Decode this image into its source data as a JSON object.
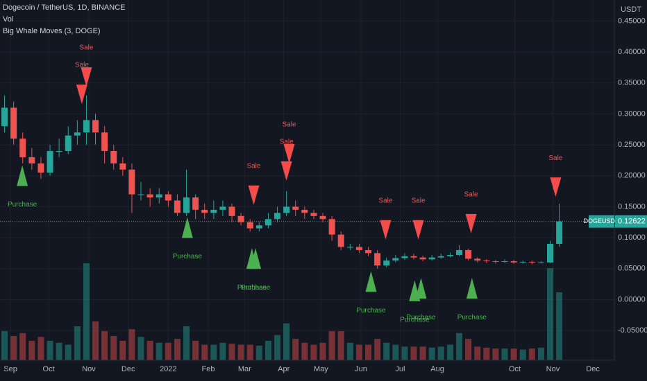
{
  "header": {
    "title": "Dogecoin / TetherUS, 1D, BINANCE",
    "volume_label": "Vol",
    "indicator": "Big Whale Moves (3, DOGE)"
  },
  "chart_data": {
    "type": "candlestick",
    "currency": "USDT",
    "symbol": "DOGEUSDT",
    "last_price": 0.12622,
    "up_color": "#26a69a",
    "down_color": "#ef5350",
    "grid": true,
    "xlim": [
      -0.5,
      67.06
    ],
    "ylim": [
      -0.098,
      0.484
    ],
    "xticks": [
      {
        "value": 0.65,
        "label": "Sep"
      },
      {
        "value": 4.85,
        "label": "Oct"
      },
      {
        "value": 9.27,
        "label": "Nov"
      },
      {
        "value": 13.6,
        "label": "Dec"
      },
      {
        "value": 18.0,
        "label": "2022"
      },
      {
        "value": 22.4,
        "label": "Feb"
      },
      {
        "value": 26.4,
        "label": "Mar"
      },
      {
        "value": 30.7,
        "label": "Apr"
      },
      {
        "value": 34.8,
        "label": "May"
      },
      {
        "value": 39.2,
        "label": "Jun"
      },
      {
        "value": 43.5,
        "label": "Jul"
      },
      {
        "value": 47.6,
        "label": "Aug"
      },
      {
        "value": 56.1,
        "label": "Oct"
      },
      {
        "value": 60.3,
        "label": "Nov"
      },
      {
        "value": 64.7,
        "label": "Dec"
      }
    ],
    "yticks": [
      {
        "value": 0.45,
        "label": "0.45000"
      },
      {
        "value": 0.4,
        "label": "0.40000"
      },
      {
        "value": 0.35,
        "label": "0.35000"
      },
      {
        "value": 0.3,
        "label": "0.30000"
      },
      {
        "value": 0.25,
        "label": "0.25000"
      },
      {
        "value": 0.2,
        "label": "0.20000"
      },
      {
        "value": 0.15,
        "label": "0.15000"
      },
      {
        "value": 0.1,
        "label": "0.10000"
      },
      {
        "value": 0.05,
        "label": "0.05000"
      },
      {
        "value": 0,
        "label": "0.00000"
      },
      {
        "value": -0.05,
        "label": "-0.05000"
      }
    ],
    "open": [
      0.28,
      0.31,
      0.26,
      0.23,
      0.22,
      0.205,
      0.24,
      0.24,
      0.265,
      0.27,
      0.29,
      0.27,
      0.24,
      0.22,
      0.21,
      0.17,
      0.17,
      0.165,
      0.17,
      0.16,
      0.14,
      0.165,
      0.145,
      0.14,
      0.145,
      0.15,
      0.135,
      0.125,
      0.115,
      0.12,
      0.13,
      0.14,
      0.15,
      0.145,
      0.14,
      0.135,
      0.13,
      0.105,
      0.085,
      0.085,
      0.08,
      0.075,
      0.055,
      0.063,
      0.067,
      0.07,
      0.068,
      0.065,
      0.068,
      0.07,
      0.072,
      0.08,
      0.066,
      0.063,
      0.062,
      0.061,
      0.062,
      0.06,
      0.061,
      0.06,
      0.06,
      0.09
    ],
    "high": [
      0.33,
      0.32,
      0.27,
      0.245,
      0.23,
      0.25,
      0.26,
      0.28,
      0.29,
      0.33,
      0.3,
      0.28,
      0.25,
      0.23,
      0.22,
      0.19,
      0.18,
      0.18,
      0.175,
      0.17,
      0.21,
      0.17,
      0.155,
      0.16,
      0.16,
      0.155,
      0.14,
      0.13,
      0.125,
      0.14,
      0.15,
      0.175,
      0.16,
      0.15,
      0.145,
      0.14,
      0.135,
      0.11,
      0.09,
      0.09,
      0.085,
      0.08,
      0.068,
      0.072,
      0.075,
      0.074,
      0.071,
      0.072,
      0.074,
      0.076,
      0.088,
      0.082,
      0.068,
      0.065,
      0.064,
      0.065,
      0.064,
      0.063,
      0.063,
      0.062,
      0.095,
      0.155
    ],
    "low": [
      0.27,
      0.25,
      0.22,
      0.21,
      0.195,
      0.2,
      0.23,
      0.235,
      0.25,
      0.25,
      0.25,
      0.22,
      0.21,
      0.2,
      0.14,
      0.16,
      0.15,
      0.155,
      0.15,
      0.135,
      0.135,
      0.13,
      0.13,
      0.13,
      0.135,
      0.125,
      0.12,
      0.11,
      0.11,
      0.115,
      0.125,
      0.135,
      0.135,
      0.13,
      0.13,
      0.125,
      0.095,
      0.08,
      0.08,
      0.075,
      0.07,
      0.05,
      0.052,
      0.06,
      0.064,
      0.065,
      0.062,
      0.063,
      0.066,
      0.068,
      0.07,
      0.063,
      0.06,
      0.059,
      0.058,
      0.059,
      0.058,
      0.058,
      0.057,
      0.058,
      0.059,
      0.085
    ],
    "close": [
      0.31,
      0.26,
      0.23,
      0.22,
      0.205,
      0.24,
      0.24,
      0.265,
      0.27,
      0.29,
      0.27,
      0.24,
      0.22,
      0.21,
      0.17,
      0.17,
      0.165,
      0.17,
      0.16,
      0.14,
      0.165,
      0.145,
      0.14,
      0.145,
      0.15,
      0.135,
      0.125,
      0.115,
      0.12,
      0.13,
      0.14,
      0.15,
      0.145,
      0.14,
      0.135,
      0.13,
      0.105,
      0.085,
      0.085,
      0.08,
      0.075,
      0.055,
      0.063,
      0.067,
      0.07,
      0.068,
      0.065,
      0.068,
      0.07,
      0.072,
      0.08,
      0.066,
      0.063,
      0.062,
      0.061,
      0.062,
      0.06,
      0.061,
      0.06,
      0.06,
      0.09,
      0.12622
    ],
    "volume": [
      3,
      2.5,
      2.8,
      2,
      2.4,
      2,
      1.8,
      1.6,
      3.5,
      10,
      4,
      3,
      2.5,
      2,
      3.2,
      2.4,
      2,
      1.8,
      1.8,
      2.2,
      3.5,
      2,
      1.6,
      1.6,
      1.8,
      1.7,
      1.6,
      1.6,
      1.5,
      2,
      2.6,
      3.8,
      2.2,
      1.8,
      1.6,
      1.8,
      3,
      3,
      1.8,
      1.6,
      1.6,
      2.2,
      1.8,
      1.6,
      1.4,
      1.4,
      1.4,
      1.3,
      1.4,
      1.6,
      2.8,
      2.2,
      1.4,
      1.3,
      1.2,
      1.2,
      1.2,
      1.1,
      1.2,
      1.3,
      9.5,
      7
    ],
    "markers": [
      {
        "label": "Sale",
        "x": 8.5,
        "y": 0.316
      },
      {
        "label": "Sale",
        "x": 9.0,
        "y": 0.344
      },
      {
        "label": "Sale",
        "x": 27.4,
        "y": 0.153
      },
      {
        "label": "Sale",
        "x": 31.0,
        "y": 0.192
      },
      {
        "label": "Sale",
        "x": 31.3,
        "y": 0.22
      },
      {
        "label": "Sale",
        "x": 41.9,
        "y": 0.097
      },
      {
        "label": "Sale",
        "x": 45.5,
        "y": 0.097
      },
      {
        "label": "Sale",
        "x": 51.3,
        "y": 0.107
      },
      {
        "label": "Sale",
        "x": 60.6,
        "y": 0.166
      },
      {
        "label": "Purchase",
        "x": 1.95,
        "y": 0.217
      },
      {
        "label": "Purchase",
        "x": 20.1,
        "y": 0.133
      },
      {
        "label": "Purchase",
        "x": 27.2,
        "y": 0.083
      },
      {
        "label": "Purchase",
        "x": 27.6,
        "y": 0.083
      },
      {
        "label": "Purchase",
        "x": 40.3,
        "y": 0.046
      },
      {
        "label": "Purchase",
        "x": 45.1,
        "y": 0.031
      },
      {
        "label": "Purchase",
        "x": 45.8,
        "y": 0.035
      },
      {
        "label": "Purchase",
        "x": 51.4,
        "y": 0.035
      }
    ]
  }
}
